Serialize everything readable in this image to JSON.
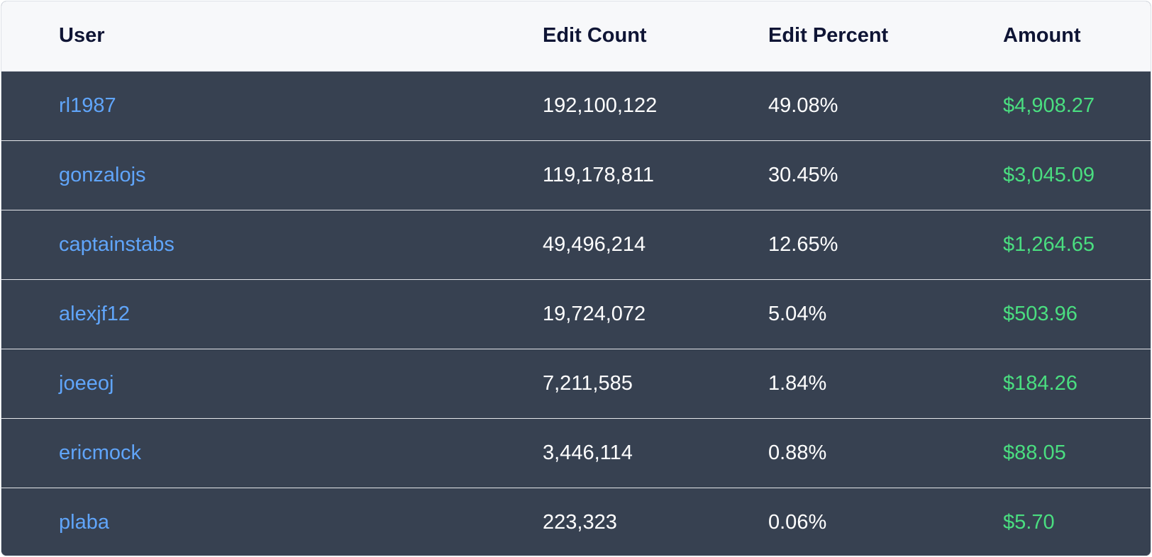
{
  "table": {
    "headers": {
      "user": "User",
      "edit_count": "Edit Count",
      "edit_percent": "Edit Percent",
      "amount": "Amount"
    },
    "rows": [
      {
        "user": "rl1987",
        "edit_count": "192,100,122",
        "edit_percent": "49.08%",
        "amount": "$4,908.27"
      },
      {
        "user": "gonzalojs",
        "edit_count": "119,178,811",
        "edit_percent": "30.45%",
        "amount": "$3,045.09"
      },
      {
        "user": "captainstabs",
        "edit_count": "49,496,214",
        "edit_percent": "12.65%",
        "amount": "$1,264.65"
      },
      {
        "user": "alexjf12",
        "edit_count": "19,724,072",
        "edit_percent": "5.04%",
        "amount": "$503.96"
      },
      {
        "user": "joeeoj",
        "edit_count": "7,211,585",
        "edit_percent": "1.84%",
        "amount": "$184.26"
      },
      {
        "user": "ericmock",
        "edit_count": "3,446,114",
        "edit_percent": "0.88%",
        "amount": "$88.05"
      },
      {
        "user": "plaba",
        "edit_count": "223,323",
        "edit_percent": "0.06%",
        "amount": "$5.70"
      }
    ]
  },
  "colors": {
    "header_background": "#f7f8fa",
    "row_background": "#374151",
    "user_link": "#60a5fa",
    "amount": "#4ade80"
  }
}
